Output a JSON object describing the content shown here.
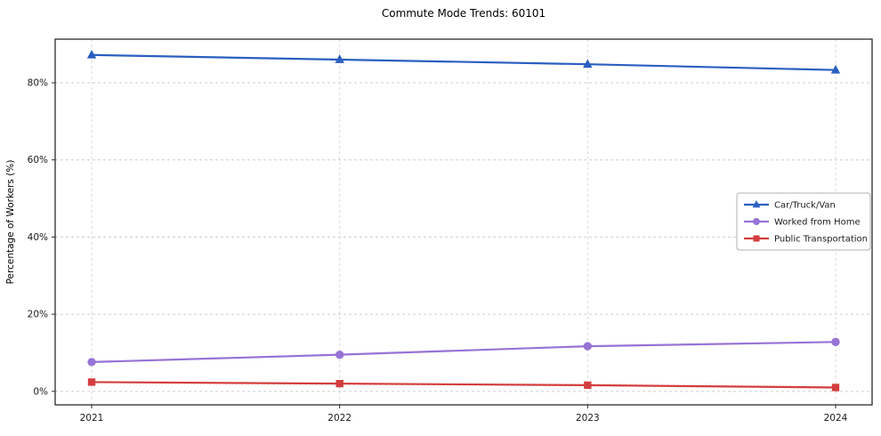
{
  "chart_data": {
    "type": "line",
    "title": "Commute Mode Trends: 60101",
    "xlabel": "",
    "ylabel": "Percentage of Workers (%)",
    "x": [
      2021,
      2022,
      2023,
      2024
    ],
    "x_tick_labels": [
      "2021",
      "2022",
      "2023",
      "2024"
    ],
    "y_ticks": [
      0,
      20,
      40,
      60,
      80
    ],
    "y_tick_labels": [
      "0%",
      "20%",
      "40%",
      "60%",
      "80%"
    ],
    "ylim": [
      -3.5,
      91.3
    ],
    "grid": true,
    "grid_style": "dashed",
    "legend_position": "center-right",
    "series": [
      {
        "name": "Car/Truck/Van",
        "values": [
          87.2,
          86.0,
          84.8,
          83.3
        ],
        "color": "#2a5fc0",
        "marker": "triangle"
      },
      {
        "name": "Worked from Home",
        "values": [
          7.6,
          9.5,
          11.7,
          12.8
        ],
        "color": "#9673d6",
        "marker": "circle"
      },
      {
        "name": "Public Transportation",
        "values": [
          2.4,
          2.0,
          1.6,
          1.0
        ],
        "color": "#d43d3d",
        "marker": "square"
      }
    ],
    "colors": {
      "axis": "#2b2b2b",
      "grid": "#cccccc",
      "tick_text": "#1a1a1a",
      "legend_border": "#b0b0b0"
    }
  }
}
